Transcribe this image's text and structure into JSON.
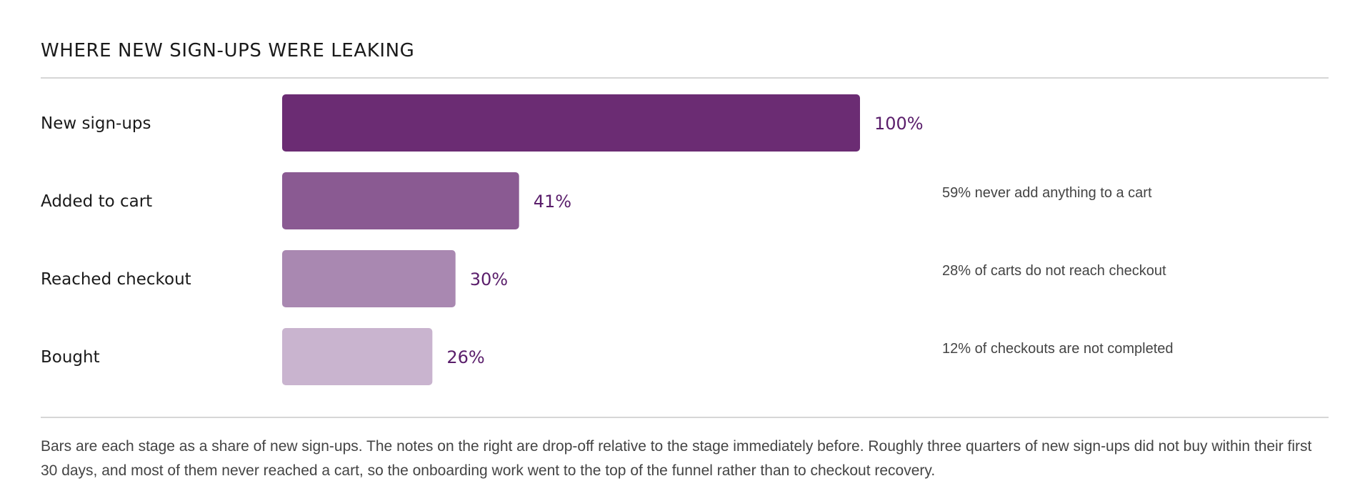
{
  "header": {
    "title": "WHERE NEW SIGN-UPS WERE LEAKING"
  },
  "chart_data": {
    "type": "bar",
    "orientation": "horizontal",
    "categories": [
      "New sign-ups",
      "Added to cart",
      "Reached checkout",
      "Bought"
    ],
    "values": [
      100,
      41,
      30,
      26
    ],
    "value_labels": [
      "100%",
      "41%",
      "30%",
      "26%"
    ],
    "annotations": [
      "",
      "59% never add anything to a cart",
      "28% of carts do not reach checkout",
      "12% of checkouts are not completed"
    ],
    "xlim": [
      0,
      100
    ],
    "grid": false,
    "colors": [
      "#6b2c73",
      "#8a5a92",
      "#a988b1",
      "#c9b4cf"
    ]
  },
  "footer": {
    "caption": "Bars are each stage as a share of new sign-ups. The notes on the right are drop-off relative to the stage immediately before. Roughly three quarters of new sign-ups did not buy within their first 30 days, and most of them never reached a cart, so the onboarding work went to the top of the funnel rather than to checkout recovery."
  }
}
